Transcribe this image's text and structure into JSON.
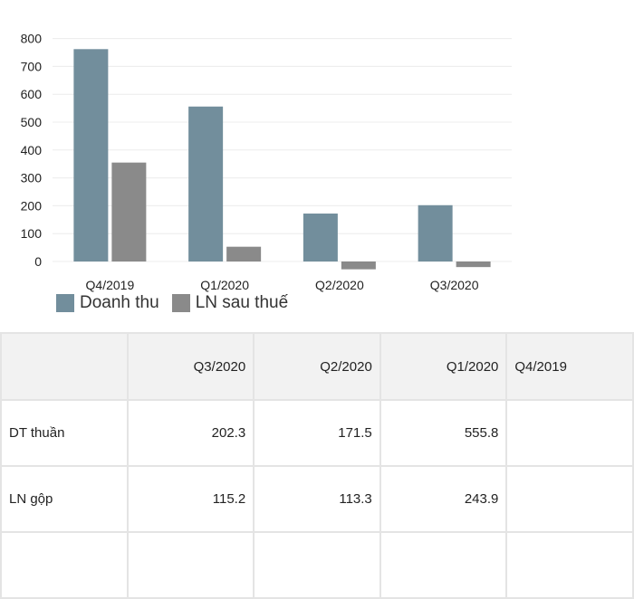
{
  "chart_data": {
    "type": "bar",
    "categories": [
      "Q4/2019",
      "Q1/2020",
      "Q2/2020",
      "Q3/2020"
    ],
    "series": [
      {
        "name": "Doanh thu",
        "values": [
          762,
          556,
          172,
          202
        ],
        "color": "#728e9c"
      },
      {
        "name": "LN sau thuế",
        "values": [
          355,
          53,
          -28,
          -20
        ],
        "color": "#8a8a8a"
      }
    ],
    "ylim": [
      -30,
      820
    ],
    "yticks": [
      0,
      100,
      200,
      300,
      400,
      500,
      600,
      700,
      800
    ],
    "ytick_labels": [
      "0",
      "100",
      "200",
      "300",
      "400",
      "500",
      "600",
      "700",
      "800"
    ],
    "grid": true,
    "legend": "bottom-left",
    "title": "",
    "xlabel": "",
    "ylabel": ""
  },
  "table": {
    "header": [
      "",
      "Q3/2020",
      "Q2/2020",
      "Q1/2020",
      "Q4/2019"
    ],
    "rows": [
      {
        "label": "DT thuần",
        "values": [
          "202.3",
          "171.5",
          "555.8",
          ""
        ]
      },
      {
        "label": "LN gộp",
        "values": [
          "115.2",
          "113.3",
          "243.9",
          ""
        ]
      },
      {
        "label": "",
        "values": [
          "",
          "",
          "",
          ""
        ]
      }
    ]
  }
}
